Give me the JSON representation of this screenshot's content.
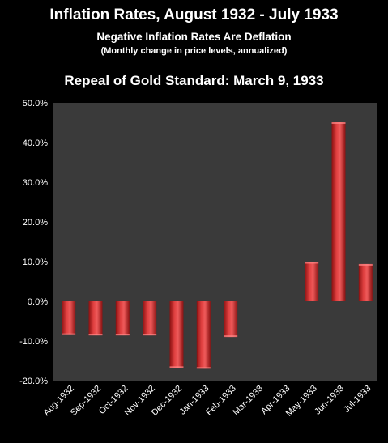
{
  "chart_data": {
    "type": "bar",
    "title": "Inflation Rates, August 1932 - July 1933",
    "subtitle": "Negative Inflation Rates Are Deflation",
    "note": "(Monthly change  in price levels, annualized)",
    "annotation": "Repeal of Gold Standard:  March 9, 1933",
    "categories": [
      "Aug-1932",
      "Sep-1932",
      "Oct-1932",
      "Nov-1932",
      "Dec-1932",
      "Jan-1933",
      "Feb-1933",
      "Mar-1933",
      "Apr-1933",
      "May-1933",
      "Jun-1933",
      "Jul-1933"
    ],
    "values": [
      -8.5,
      -8.6,
      -8.6,
      -8.6,
      -16.8,
      -17.0,
      -9.0,
      0,
      0,
      9.9,
      45.1,
      9.4
    ],
    "ylim": [
      -20,
      50
    ],
    "yticks": [
      "50.0%",
      "40.0%",
      "30.0%",
      "20.0%",
      "10.0%",
      "0.0%",
      "-10.0%",
      "-20.0%"
    ],
    "ytick_values": [
      50,
      40,
      30,
      20,
      10,
      0,
      -10,
      -20
    ],
    "grid": false,
    "colors": {
      "bar": "#d42a2a",
      "plot_bg": "#3a3a3a",
      "page_bg": "#000000"
    }
  }
}
